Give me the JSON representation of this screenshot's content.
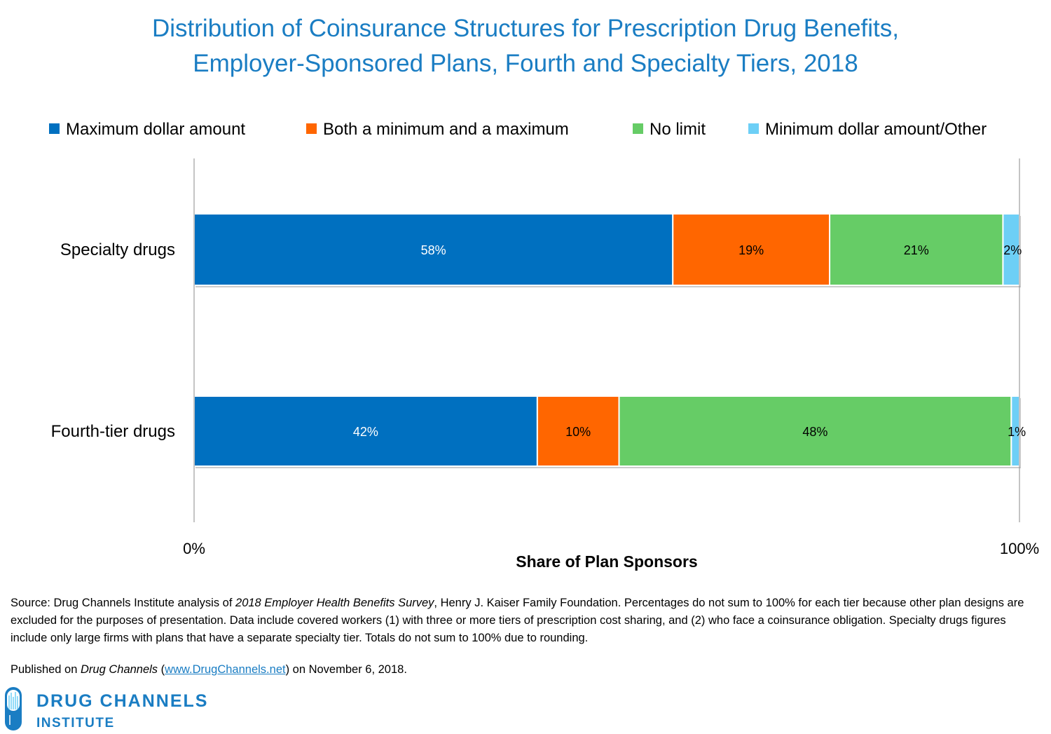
{
  "chart_data": {
    "type": "bar",
    "orientation": "horizontal",
    "stacked": true,
    "title_lines": [
      "Distribution of Coinsurance Structures for Prescription Drug Benefits,",
      "Employer-Sponsored Plans, Fourth and Specialty Tiers, 2018"
    ],
    "xlabel": "Share of Plan Sponsors",
    "ylabel": "",
    "xlim": [
      0,
      100
    ],
    "x_ticks": [
      "0%",
      "100%"
    ],
    "categories": [
      "Specialty drugs",
      "Fourth-tier drugs"
    ],
    "series": [
      {
        "name": "Maximum dollar amount",
        "color": "#0070c0",
        "label_color": "#ffffff",
        "values": [
          58,
          42
        ]
      },
      {
        "name": "Both a minimum and a maximum",
        "color": "#ff6600",
        "label_color": "#000000",
        "values": [
          19,
          10
        ]
      },
      {
        "name": "No limit",
        "color": "#66cc66",
        "label_color": "#000000",
        "values": [
          21,
          48
        ]
      },
      {
        "name": "Minimum dollar amount/Other",
        "color": "#6dcff6",
        "label_color": "#000000",
        "values": [
          2,
          1
        ]
      }
    ],
    "data_label_format": "{v}%",
    "legend_placement": "top",
    "grid": false
  },
  "footer": {
    "source_prefix": "Source: Drug Channels Institute analysis of ",
    "source_italic": "2018 Employer Health Benefits Survey",
    "source_rest": ", Henry J. Kaiser Family Foundation. Percentages do not sum to 100% for each tier because other plan designs are excluded for the purposes of presentation. Data include covered workers (1) with three or more tiers of prescription cost sharing, and (2) who face a coinsurance obligation. Specialty drugs figures include only large firms with plans that have a separate specialty tier. Totals do not sum to 100% due to rounding.",
    "published_prefix": "Published on ",
    "published_italic": "Drug Channels",
    "published_open": " (",
    "published_link": "www.DrugChannels.net",
    "published_suffix": ") on November 6, 2018."
  },
  "logo": {
    "line1": "DRUG CHANNELS",
    "line2": "INSTITUTE",
    "color": "#1a7dc3"
  }
}
